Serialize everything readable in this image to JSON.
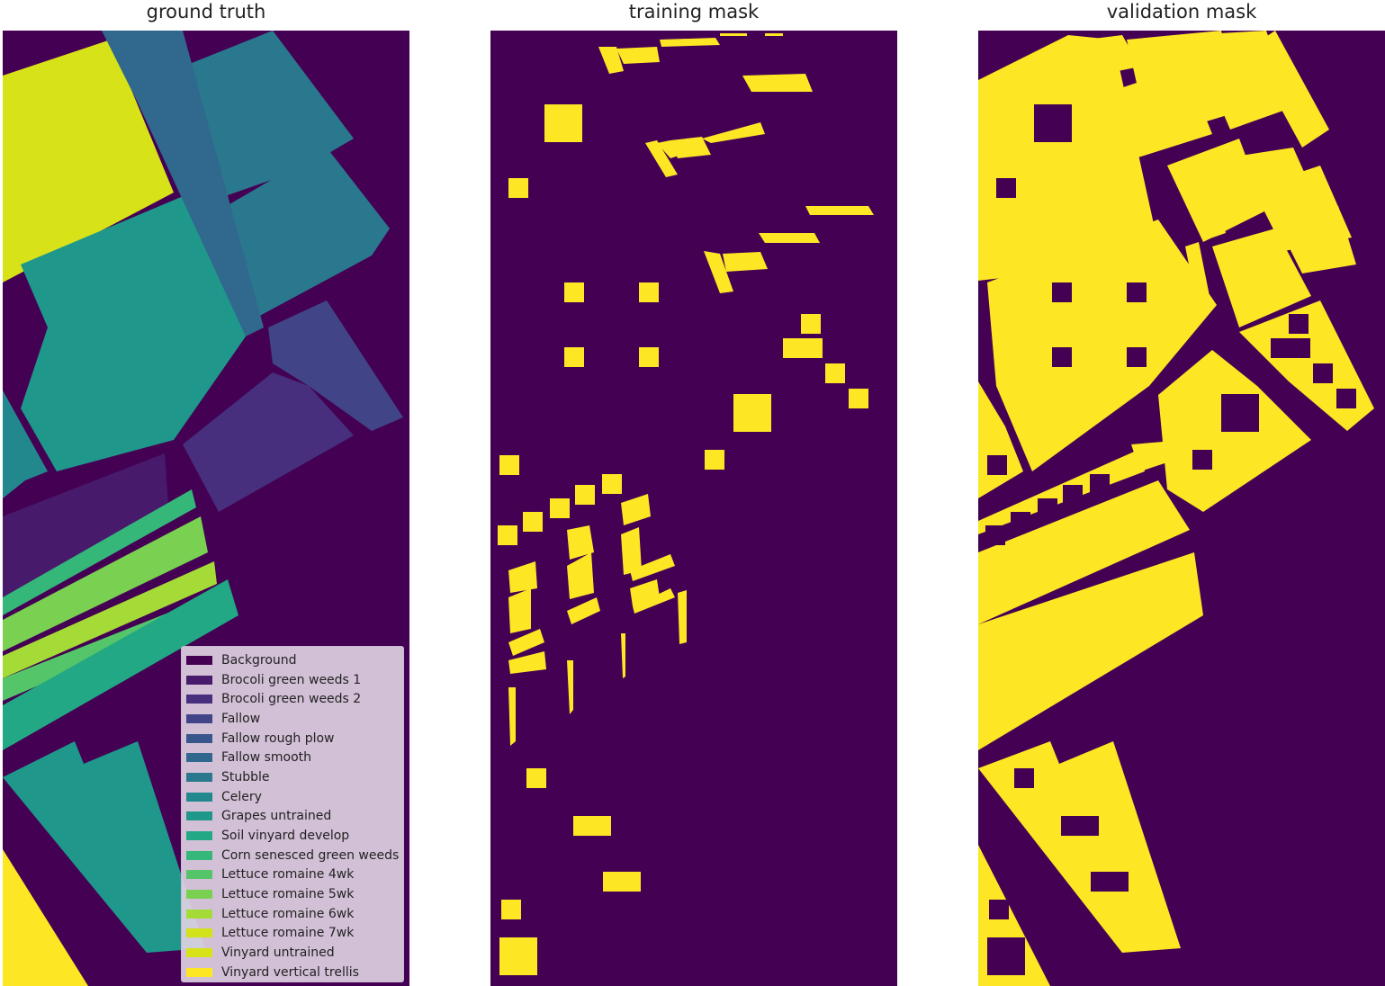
{
  "panels": [
    {
      "title": "ground truth"
    },
    {
      "title": "training mask"
    },
    {
      "title": "validation mask"
    }
  ],
  "legend": {
    "items": [
      {
        "label": "Background",
        "color": "#440154"
      },
      {
        "label": "Brocoli green weeds 1",
        "color": "#481a6c"
      },
      {
        "label": "Brocoli green weeds 2",
        "color": "#472f7d"
      },
      {
        "label": "Fallow",
        "color": "#414487"
      },
      {
        "label": "Fallow rough plow",
        "color": "#39568c"
      },
      {
        "label": "Fallow smooth",
        "color": "#31688e"
      },
      {
        "label": "Stubble",
        "color": "#2a788e"
      },
      {
        "label": "Celery",
        "color": "#23888e"
      },
      {
        "label": "Grapes untrained",
        "color": "#1f988b"
      },
      {
        "label": "Soil vinyard develop",
        "color": "#22a884"
      },
      {
        "label": "Corn senesced green weeds",
        "color": "#35b779"
      },
      {
        "label": "Lettuce romaine 4wk",
        "color": "#54c568"
      },
      {
        "label": "Lettuce romaine 5wk",
        "color": "#7ad151"
      },
      {
        "label": "Lettuce romaine 6wk",
        "color": "#a5db36"
      },
      {
        "label": "Lettuce romaine 7wk",
        "color": "#d2e21b"
      },
      {
        "label": "Vinyard untrained",
        "color": "#d8e219"
      },
      {
        "label": "Vinyard vertical trellis",
        "color": "#fde725"
      }
    ]
  },
  "colors": {
    "background": "#440154",
    "mask": "#fde725"
  }
}
